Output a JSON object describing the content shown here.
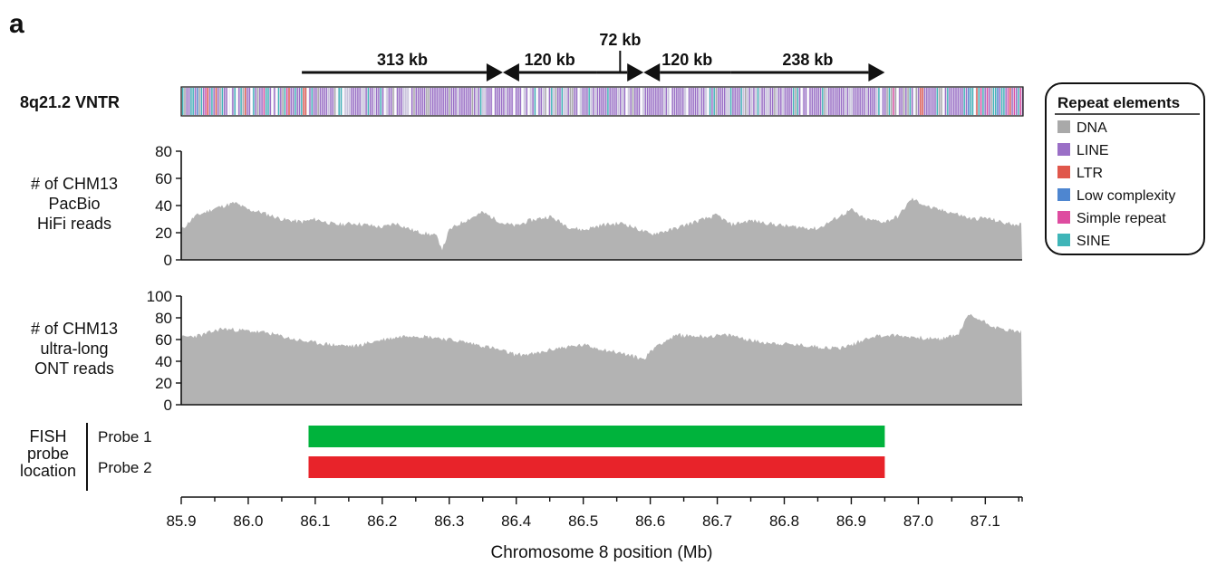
{
  "panel_letter": "a",
  "colors": {
    "DNA": "#a9a9a9",
    "LINE": "#9a6fc6",
    "LTR": "#e0574b",
    "Low complexity": "#4e86d0",
    "Simple repeat": "#de4ca0",
    "SINE": "#3fb5b8",
    "probe1": "#00b33c",
    "probe2": "#e8232a",
    "coverage_fill": "#b3b3b3"
  },
  "track_label": "8q21.2 VNTR",
  "segments": [
    {
      "label": "313 kb",
      "start": 86.08,
      "end": 86.38,
      "direction": "right"
    },
    {
      "label": "120 kb",
      "start": 86.38,
      "end": 86.52,
      "direction": "left"
    },
    {
      "label": "72 kb",
      "start": 86.52,
      "end": 86.59,
      "direction": "right"
    },
    {
      "label": "120 kb",
      "start": 86.59,
      "end": 86.72,
      "direction": "left"
    },
    {
      "label": "238 kb",
      "start": 86.72,
      "end": 86.95,
      "direction": "right"
    }
  ],
  "legend": {
    "title": "Repeat elements",
    "items": [
      "DNA",
      "LINE",
      "LTR",
      "Low complexity",
      "Simple repeat",
      "SINE"
    ]
  },
  "chart_data": [
    {
      "type": "area",
      "ylabel": [
        "# of CHM13",
        "PacBio",
        "HiFi reads"
      ],
      "ylim": [
        0,
        80
      ],
      "yticks": [
        "0",
        "20",
        "40",
        "60",
        "80"
      ],
      "x": [
        85.9,
        85.92,
        85.95,
        85.98,
        86.0,
        86.02,
        86.05,
        86.08,
        86.1,
        86.13,
        86.16,
        86.2,
        86.22,
        86.25,
        86.28,
        86.29,
        86.3,
        86.32,
        86.35,
        86.38,
        86.4,
        86.42,
        86.45,
        86.48,
        86.5,
        86.53,
        86.56,
        86.6,
        86.63,
        86.66,
        86.7,
        86.72,
        86.75,
        86.8,
        86.85,
        86.9,
        86.92,
        86.95,
        86.97,
        86.99,
        87.02,
        87.05,
        87.08,
        87.1,
        87.13,
        87.155
      ],
      "values": [
        22,
        32,
        38,
        42,
        37,
        35,
        30,
        28,
        30,
        26,
        27,
        24,
        27,
        21,
        18,
        8,
        22,
        28,
        35,
        27,
        25,
        29,
        32,
        24,
        22,
        26,
        27,
        19,
        22,
        27,
        33,
        26,
        29,
        25,
        23,
        37,
        30,
        28,
        32,
        45,
        38,
        35,
        30,
        31,
        27,
        26
      ]
    },
    {
      "type": "area",
      "ylabel": [
        "# of CHM13",
        "ultra-long",
        "ONT reads"
      ],
      "ylim": [
        0,
        100
      ],
      "yticks": [
        "0",
        "20",
        "40",
        "60",
        "80",
        "100"
      ],
      "x": [
        85.9,
        85.93,
        85.96,
        86.0,
        86.03,
        86.07,
        86.1,
        86.13,
        86.16,
        86.2,
        86.24,
        86.28,
        86.32,
        86.36,
        86.4,
        86.43,
        86.46,
        86.5,
        86.53,
        86.56,
        86.59,
        86.61,
        86.64,
        86.68,
        86.72,
        86.76,
        86.8,
        86.84,
        86.88,
        86.9,
        86.93,
        86.96,
        87.0,
        87.03,
        87.06,
        87.075,
        87.09,
        87.12,
        87.155
      ],
      "values": [
        62,
        64,
        70,
        68,
        66,
        60,
        57,
        55,
        54,
        60,
        64,
        62,
        58,
        53,
        46,
        47,
        52,
        55,
        51,
        47,
        42,
        55,
        64,
        63,
        64,
        58,
        56,
        54,
        52,
        55,
        63,
        64,
        62,
        60,
        65,
        83,
        79,
        70,
        67
      ]
    },
    {
      "type": "bar",
      "title_lines": [
        "FISH",
        "probe",
        "location"
      ],
      "categories": [
        "Probe 1",
        "Probe 2"
      ],
      "ranges": [
        [
          86.09,
          86.95
        ],
        [
          86.09,
          86.95
        ]
      ]
    }
  ],
  "x_axis": {
    "label": "Chromosome 8 position (Mb)",
    "xlim": [
      85.9,
      87.155
    ],
    "ticks": [
      "85.9",
      "86.0",
      "86.1",
      "86.2",
      "86.3",
      "86.4",
      "86.5",
      "86.6",
      "86.7",
      "86.8",
      "86.9",
      "87.0",
      "87.1"
    ]
  }
}
